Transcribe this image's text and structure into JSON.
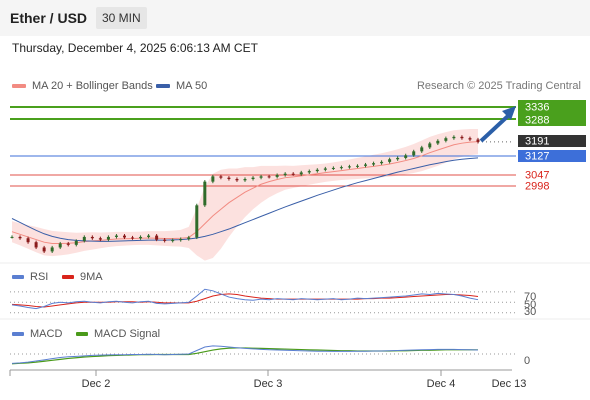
{
  "header": {
    "title": "Ether / USD",
    "interval": "30 MIN"
  },
  "datetime": "Thursday, December 4, 2025 6:06:13 AM CET",
  "legend": {
    "ma20": {
      "label": "MA 20 + Bollinger Bands",
      "color": "#f28b82"
    },
    "ma50": {
      "label": "MA 50",
      "color": "#3a5fa8"
    }
  },
  "credit": "Research © 2025 Trading Central",
  "levels": [
    {
      "value": "3336",
      "kind": "resistance"
    },
    {
      "value": "3288",
      "kind": "resistance"
    },
    {
      "value": "3191",
      "kind": "current"
    },
    {
      "value": "3127",
      "kind": "pivot"
    },
    {
      "value": "3047",
      "kind": "support"
    },
    {
      "value": "2998",
      "kind": "support"
    }
  ],
  "rsi_panel": {
    "legend_rsi": "RSI",
    "legend_ma": "9MA",
    "levels": [
      "70",
      "50",
      "30"
    ]
  },
  "macd_panel": {
    "legend_macd": "MACD",
    "legend_signal": "MACD Signal",
    "level": "0"
  },
  "x_axis": {
    "labels": [
      "Dec 2",
      "Dec 3",
      "Dec 4",
      "Dec 13"
    ]
  },
  "chart_data": {
    "type": "line",
    "title": "Ether / USD",
    "interval": "30 MIN",
    "x_ticks": [
      "Dec 2",
      "Dec 3",
      "Dec 4",
      "Dec 13"
    ],
    "price": {
      "close": [
        2830,
        2825,
        2810,
        2790,
        2775,
        2790,
        2805,
        2800,
        2815,
        2830,
        2825,
        2820,
        2830,
        2835,
        2828,
        2825,
        2830,
        2835,
        2820,
        2815,
        2818,
        2822,
        2828,
        2950,
        3040,
        3060,
        3055,
        3050,
        3045,
        3050,
        3055,
        3060,
        3058,
        3065,
        3070,
        3068,
        3075,
        3080,
        3085,
        3090,
        3092,
        3095,
        3098,
        3100,
        3105,
        3110,
        3115,
        3125,
        3130,
        3140,
        3155,
        3170,
        3185,
        3195,
        3205,
        3210,
        3205,
        3200,
        3191
      ],
      "ma20": [
        2850,
        2840,
        2830,
        2820,
        2810,
        2805,
        2805,
        2806,
        2808,
        2812,
        2815,
        2817,
        2820,
        2822,
        2823,
        2824,
        2825,
        2826,
        2825,
        2824,
        2824,
        2825,
        2828,
        2850,
        2880,
        2910,
        2935,
        2960,
        2980,
        3000,
        3015,
        3030,
        3040,
        3048,
        3055,
        3058,
        3062,
        3066,
        3070,
        3074,
        3078,
        3082,
        3086,
        3090,
        3094,
        3098,
        3102,
        3107,
        3113,
        3120,
        3128,
        3138,
        3150,
        3160,
        3170,
        3180,
        3186,
        3190,
        3192
      ],
      "ma50": [
        2900,
        2885,
        2870,
        2855,
        2842,
        2832,
        2825,
        2820,
        2817,
        2815,
        2814,
        2813,
        2813,
        2814,
        2815,
        2816,
        2817,
        2818,
        2818,
        2818,
        2819,
        2820,
        2822,
        2826,
        2832,
        2840,
        2850,
        2860,
        2872,
        2884,
        2896,
        2908,
        2920,
        2932,
        2944,
        2955,
        2966,
        2977,
        2988,
        2998,
        3008,
        3018,
        3027,
        3036,
        3044,
        3052,
        3060,
        3068,
        3076,
        3083,
        3090,
        3097,
        3104,
        3110,
        3116,
        3121,
        3125,
        3128,
        3130
      ],
      "bb_width": [
        40,
        42,
        45,
        48,
        50,
        48,
        45,
        42,
        38,
        35,
        33,
        30,
        28,
        27,
        26,
        25,
        25,
        26,
        27,
        28,
        30,
        32,
        40,
        90,
        140,
        160,
        150,
        130,
        110,
        95,
        80,
        70,
        60,
        52,
        46,
        42,
        40,
        38,
        36,
        35,
        35,
        36,
        38,
        40,
        42,
        44,
        46,
        48,
        50,
        52,
        55,
        58,
        60,
        60,
        58,
        55,
        52,
        50,
        48
      ],
      "ylim": [
        2750,
        3350
      ]
    },
    "rsi": {
      "values": [
        45,
        43,
        40,
        38,
        42,
        48,
        50,
        49,
        51,
        52,
        50,
        49,
        51,
        52,
        50,
        49,
        51,
        52,
        48,
        47,
        48,
        49,
        50,
        62,
        75,
        72,
        66,
        60,
        57,
        55,
        54,
        56,
        55,
        57,
        56,
        55,
        57,
        56,
        55,
        56,
        57,
        55,
        56,
        58,
        57,
        58,
        59,
        60,
        61,
        62,
        64,
        66,
        65,
        67,
        66,
        65,
        62,
        58,
        55
      ],
      "ma9": [
        46,
        45,
        44,
        42,
        41,
        43,
        45,
        47,
        49,
        50,
        50,
        50,
        50,
        51,
        51,
        51,
        50,
        51,
        50,
        49,
        49,
        49,
        49,
        52,
        57,
        62,
        65,
        66,
        65,
        62,
        60,
        58,
        57,
        56,
        56,
        56,
        56,
        56,
        56,
        56,
        56,
        56,
        56,
        56,
        57,
        57,
        58,
        58,
        59,
        60,
        61,
        62,
        63,
        64,
        65,
        65,
        64,
        63,
        61
      ],
      "levels": [
        70,
        50,
        30
      ],
      "ylim": [
        20,
        85
      ]
    },
    "macd": {
      "macd": [
        -40,
        -38,
        -35,
        -30,
        -25,
        -20,
        -15,
        -12,
        -10,
        -8,
        -6,
        -5,
        -4,
        -3,
        -3,
        -2,
        -2,
        -1,
        -2,
        -3,
        -2,
        -1,
        0,
        15,
        30,
        35,
        33,
        30,
        27,
        24,
        22,
        20,
        18,
        17,
        16,
        15,
        14,
        13,
        12,
        12,
        11,
        11,
        11,
        12,
        12,
        13,
        13,
        14,
        15,
        16,
        17,
        18,
        19,
        20,
        20,
        20,
        19,
        18,
        17
      ],
      "signal": [
        -42,
        -40,
        -38,
        -35,
        -31,
        -27,
        -23,
        -19,
        -16,
        -13,
        -11,
        -9,
        -7,
        -6,
        -5,
        -4,
        -3,
        -3,
        -2,
        -2,
        -2,
        -2,
        -2,
        3,
        10,
        17,
        22,
        25,
        26,
        26,
        25,
        24,
        23,
        22,
        21,
        20,
        19,
        18,
        17,
        16,
        15,
        14,
        14,
        13,
        13,
        13,
        13,
        13,
        14,
        14,
        15,
        16,
        16,
        17,
        18,
        18,
        18,
        18,
        18
      ],
      "level": 0,
      "ylim": [
        -60,
        60
      ]
    }
  }
}
